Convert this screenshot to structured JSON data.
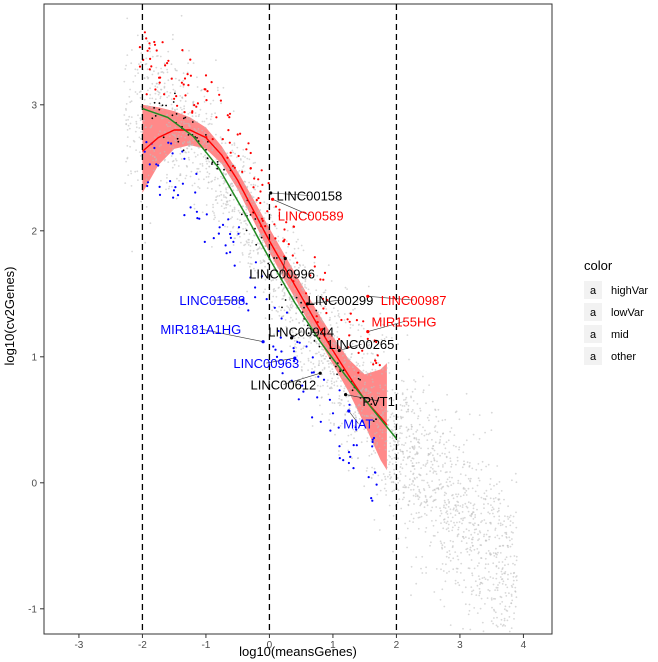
{
  "chart_data": {
    "type": "scatter",
    "xlabel": "log10(meansGenes)",
    "ylabel": "log10(cv2Genes)",
    "xlim": [
      -3.55,
      4.45
    ],
    "ylim": [
      -1.2,
      3.8
    ],
    "x_ticks": [
      -3,
      -2,
      -1,
      0,
      1,
      2,
      3,
      4
    ],
    "x_tick_labels": [
      "-3",
      "-2",
      "-1",
      "0",
      "1",
      "2",
      "3",
      "4"
    ],
    "y_ticks": [
      -1,
      0,
      1,
      2,
      3
    ],
    "y_tick_labels": [
      "-1",
      "0",
      "1",
      "2",
      "3"
    ],
    "vlines": [
      -2,
      0,
      2
    ],
    "legend": {
      "title": "color",
      "items": [
        {
          "key": "highVar",
          "glyph": "a",
          "label": "highVar",
          "color": "#ff0000"
        },
        {
          "key": "lowVar",
          "glyph": "a",
          "label": "lowVar",
          "color": "#0000ff"
        },
        {
          "key": "mid",
          "glyph": "a",
          "label": "mid",
          "color": "#000000"
        },
        {
          "key": "other",
          "glyph": "a",
          "label": "other",
          "color": "#bebebe"
        }
      ]
    },
    "colors": {
      "highVar": "#ff0000",
      "lowVar": "#0000ff",
      "mid": "#000000",
      "other": "#bebebe",
      "loess": "#ff0000",
      "ribbon": "#ff6b6b",
      "fit": "#228b22"
    },
    "fit_curve": {
      "name": "fit",
      "x": [
        -2.0,
        -1.6,
        -1.2,
        -0.8,
        -0.4,
        0.0,
        0.4,
        0.8,
        1.2,
        1.6,
        2.0
      ],
      "y": [
        2.97,
        2.9,
        2.75,
        2.5,
        2.15,
        1.78,
        1.43,
        1.12,
        0.85,
        0.6,
        0.35
      ]
    },
    "loess_curve": {
      "name": "loess",
      "x": [
        -2.0,
        -1.75,
        -1.5,
        -1.25,
        -1.0,
        -0.75,
        -0.5,
        -0.25,
        0.0,
        0.25,
        0.5,
        0.75,
        1.0,
        1.25,
        1.5,
        1.75,
        1.85
      ],
      "y": [
        2.63,
        2.74,
        2.8,
        2.8,
        2.74,
        2.6,
        2.4,
        2.16,
        1.92,
        1.7,
        1.48,
        1.26,
        1.05,
        0.85,
        0.66,
        0.52,
        0.46
      ]
    },
    "ribbon": {
      "x": [
        -2.0,
        -1.75,
        -1.5,
        -1.25,
        -1.0,
        -0.75,
        -0.5,
        -0.25,
        0.0,
        0.25,
        0.5,
        0.75,
        1.0,
        1.25,
        1.5,
        1.75,
        1.85
      ],
      "upper": [
        3.0,
        2.98,
        2.95,
        2.9,
        2.82,
        2.67,
        2.47,
        2.25,
        2.02,
        1.8,
        1.58,
        1.36,
        1.16,
        0.98,
        0.86,
        0.9,
        0.95
      ],
      "lower": [
        2.3,
        2.52,
        2.65,
        2.68,
        2.65,
        2.53,
        2.33,
        2.08,
        1.83,
        1.6,
        1.38,
        1.16,
        0.94,
        0.72,
        0.46,
        0.18,
        0.1
      ]
    },
    "gene_labels": [
      {
        "text": "LINC00158",
        "group": "mid",
        "x": 0.63,
        "y": 2.28,
        "px": 0.02,
        "py": 2.3
      },
      {
        "text": "LINC00589",
        "group": "highVar",
        "x": 0.65,
        "y": 2.12,
        "px": 0.05,
        "py": 2.25
      },
      {
        "text": "LINC00996",
        "group": "mid",
        "x": 0.2,
        "y": 1.66,
        "px": 0.25,
        "py": 1.78
      },
      {
        "text": "LINC01588",
        "group": "lowVar",
        "x": -0.9,
        "y": 1.45,
        "px": -0.42,
        "py": 1.45
      },
      {
        "text": "LINC00299",
        "group": "mid",
        "x": 1.12,
        "y": 1.45,
        "px": 0.6,
        "py": 1.42
      },
      {
        "text": "LINC00987",
        "group": "highVar",
        "x": 2.27,
        "y": 1.45,
        "px": 1.55,
        "py": 1.48
      },
      {
        "text": "MIR155HG",
        "group": "highVar",
        "x": 2.12,
        "y": 1.28,
        "px": 1.55,
        "py": 1.2
      },
      {
        "text": "MIR181A1HG",
        "group": "lowVar",
        "x": -1.08,
        "y": 1.22,
        "px": -0.1,
        "py": 1.12
      },
      {
        "text": "LINC00944",
        "group": "mid",
        "x": 0.5,
        "y": 1.2,
        "px": 0.35,
        "py": 1.15
      },
      {
        "text": "LINC00265",
        "group": "mid",
        "x": 1.45,
        "y": 1.1,
        "px": 1.1,
        "py": 1.05
      },
      {
        "text": "LINC00963",
        "group": "lowVar",
        "x": -0.05,
        "y": 0.95,
        "px": 0.4,
        "py": 0.99
      },
      {
        "text": "LINC00612",
        "group": "mid",
        "x": 0.22,
        "y": 0.78,
        "px": 0.8,
        "py": 0.87
      },
      {
        "text": "PVT1",
        "group": "mid",
        "x": 1.72,
        "y": 0.65,
        "px": 1.2,
        "py": 0.7
      },
      {
        "text": "MIAT",
        "group": "lowVar",
        "x": 1.4,
        "y": 0.47,
        "px": 1.25,
        "py": 0.57
      }
    ]
  }
}
